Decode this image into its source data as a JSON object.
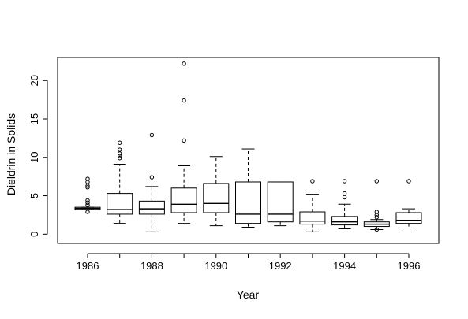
{
  "chart_data": {
    "type": "boxplot",
    "title": "",
    "xlabel": "Year",
    "ylabel": "Dieldrin in Solids",
    "ylim": [
      -1.2,
      23.0
    ],
    "yticks": [
      0,
      5,
      10,
      15,
      20
    ],
    "grid": false,
    "categories": [
      "1986",
      "1987",
      "1988",
      "1989",
      "1990",
      "1991",
      "1992",
      "1993",
      "1994",
      "1995",
      "1996"
    ],
    "x_tick_labels": [
      "1986",
      "",
      "1988",
      "",
      "1990",
      "",
      "1992",
      "",
      "1994",
      "",
      "1996"
    ],
    "boxes": [
      {
        "year": "1986",
        "whisker_low": 3.2,
        "q1": 3.2,
        "median": 3.35,
        "q3": 3.5,
        "whisker_high": 3.5,
        "outliers": [
          2.9,
          3.8,
          4.1,
          4.4,
          6.1,
          6.3,
          6.8,
          7.2
        ]
      },
      {
        "year": "1987",
        "whisker_low": 1.4,
        "q1": 2.6,
        "median": 3.2,
        "q3": 5.3,
        "whisker_high": 9.1,
        "outliers": [
          9.9,
          10.2,
          10.5,
          11.0,
          11.9
        ]
      },
      {
        "year": "1988",
        "whisker_low": 0.3,
        "q1": 2.6,
        "median": 3.3,
        "q3": 4.3,
        "whisker_high": 6.2,
        "outliers": [
          7.4,
          12.9
        ]
      },
      {
        "year": "1989",
        "whisker_low": 1.4,
        "q1": 2.8,
        "median": 3.9,
        "q3": 6.0,
        "whisker_high": 8.9,
        "outliers": [
          12.2,
          17.4,
          22.2
        ]
      },
      {
        "year": "1990",
        "whisker_low": 1.1,
        "q1": 2.8,
        "median": 4.0,
        "q3": 6.6,
        "whisker_high": 10.1,
        "outliers": []
      },
      {
        "year": "1991",
        "whisker_low": 0.9,
        "q1": 1.4,
        "median": 2.6,
        "q3": 6.8,
        "whisker_high": 11.1,
        "outliers": []
      },
      {
        "year": "1992",
        "whisker_low": 1.1,
        "q1": 1.6,
        "median": 2.6,
        "q3": 6.8,
        "whisker_high": 6.8,
        "outliers": []
      },
      {
        "year": "1993",
        "whisker_low": 0.3,
        "q1": 1.3,
        "median": 1.7,
        "q3": 2.9,
        "whisker_high": 5.2,
        "outliers": [
          6.9
        ]
      },
      {
        "year": "1994",
        "whisker_low": 0.7,
        "q1": 1.2,
        "median": 1.6,
        "q3": 2.3,
        "whisker_high": 3.9,
        "outliers": [
          4.8,
          5.3,
          6.9
        ]
      },
      {
        "year": "1995",
        "whisker_low": 0.6,
        "q1": 1.0,
        "median": 1.3,
        "q3": 1.6,
        "whisker_high": 1.9,
        "outliers": [
          0.6,
          2.2,
          2.5,
          2.9,
          6.9
        ]
      },
      {
        "year": "1996",
        "whisker_low": 0.8,
        "q1": 1.4,
        "median": 1.8,
        "q3": 2.8,
        "whisker_high": 3.3,
        "outliers": [
          6.9
        ]
      }
    ]
  },
  "colors": {
    "background": "#ffffff",
    "foreground": "#000000"
  }
}
